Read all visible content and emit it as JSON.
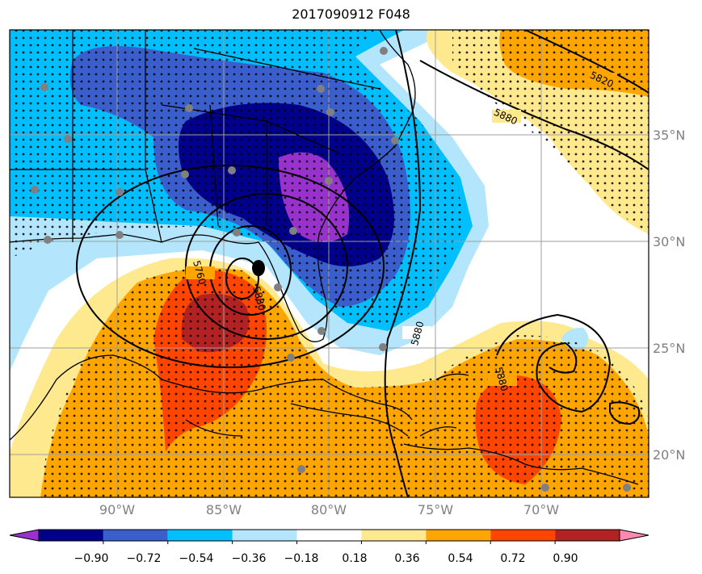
{
  "title": "2017090912 F048",
  "map": {
    "lon_ticks": [
      "90°W",
      "85°W",
      "80°W",
      "75°W",
      "70°W"
    ],
    "lat_ticks": [
      "35°N",
      "30°N",
      "25°N",
      "20°N"
    ],
    "height_contour_labels": [
      "5820",
      "5880",
      "5760",
      "5880",
      "5880",
      "5880"
    ],
    "stippling": "dots"
  },
  "colorbar": {
    "ticks": [
      "−0.90",
      "−0.72",
      "−0.54",
      "−0.36",
      "−0.18",
      "0.18",
      "0.36",
      "0.54",
      "0.72",
      "0.90"
    ],
    "colors": [
      "#9932cc",
      "#00008b",
      "#3a5fcd",
      "#00bfff",
      "#b3e5fc",
      "#ffffff",
      "#ffe98f",
      "#ffa500",
      "#ff4500",
      "#b22222",
      "#ff88b0"
    ]
  }
}
